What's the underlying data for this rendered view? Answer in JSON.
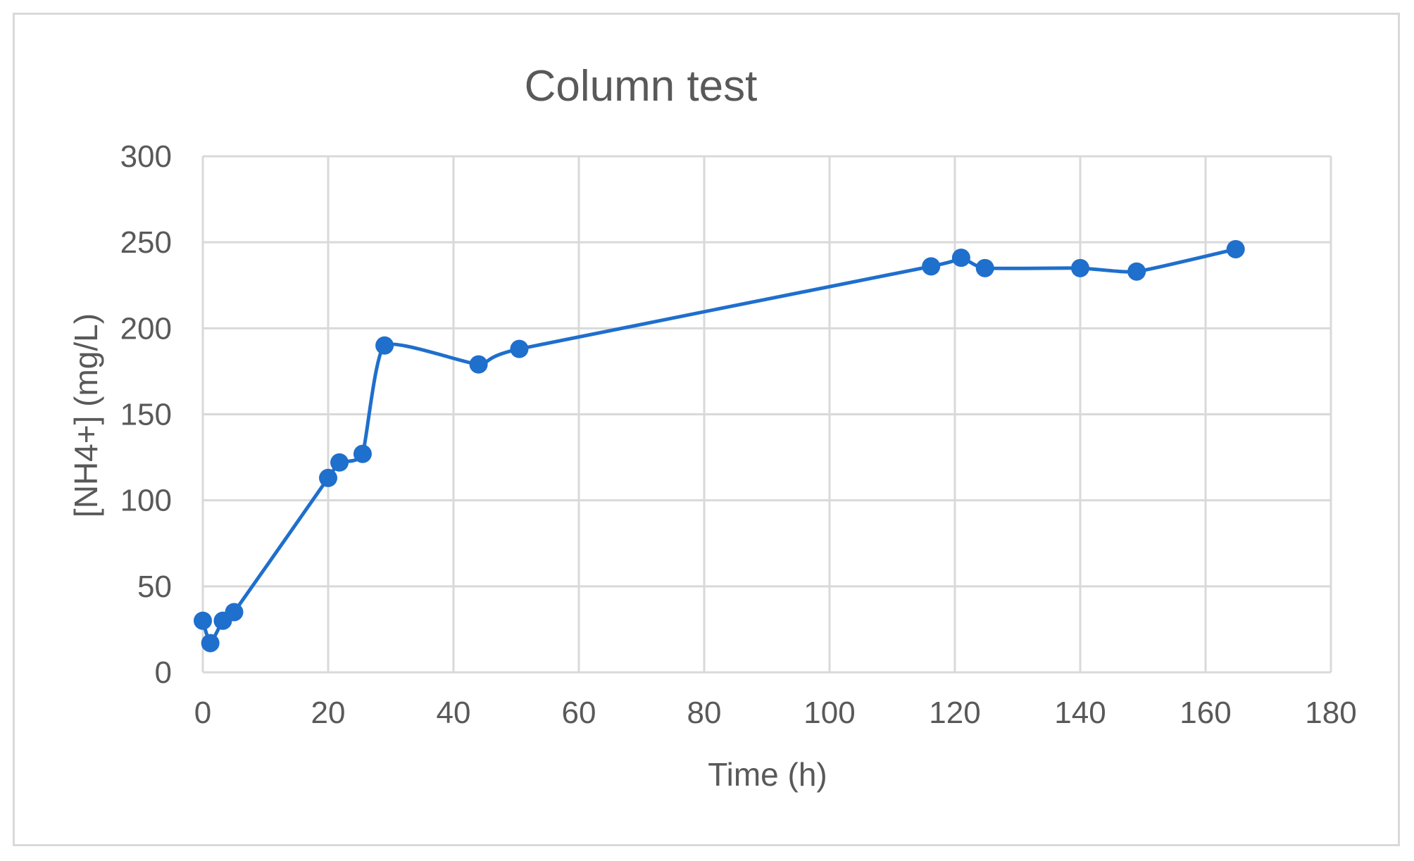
{
  "chart_data": {
    "type": "scatter",
    "title": "Column test",
    "xlabel": "Time (h)",
    "ylabel": "[NH4+] (mg/L)",
    "xlim": [
      0,
      180
    ],
    "ylim": [
      0,
      300
    ],
    "x_ticks": [
      "0",
      "20",
      "40",
      "60",
      "80",
      "100",
      "120",
      "140",
      "160",
      "180"
    ],
    "y_ticks": [
      "0",
      "50",
      "100",
      "150",
      "200",
      "250",
      "300"
    ],
    "grid": true,
    "legend": "none",
    "line_style": "smooth",
    "series": [
      {
        "color": "#1f6fcc",
        "points": [
          {
            "x": 0,
            "y": 30
          },
          {
            "x": 1.2,
            "y": 17
          },
          {
            "x": 3.2,
            "y": 30
          },
          {
            "x": 5,
            "y": 35
          },
          {
            "x": 20,
            "y": 113
          },
          {
            "x": 21.8,
            "y": 122
          },
          {
            "x": 25.5,
            "y": 127
          },
          {
            "x": 29,
            "y": 190
          },
          {
            "x": 44,
            "y": 179
          },
          {
            "x": 50.5,
            "y": 188
          },
          {
            "x": 116.2,
            "y": 236
          },
          {
            "x": 121,
            "y": 241
          },
          {
            "x": 124.8,
            "y": 235
          },
          {
            "x": 140,
            "y": 235
          },
          {
            "x": 149,
            "y": 233
          },
          {
            "x": 164.8,
            "y": 246
          }
        ]
      }
    ]
  }
}
